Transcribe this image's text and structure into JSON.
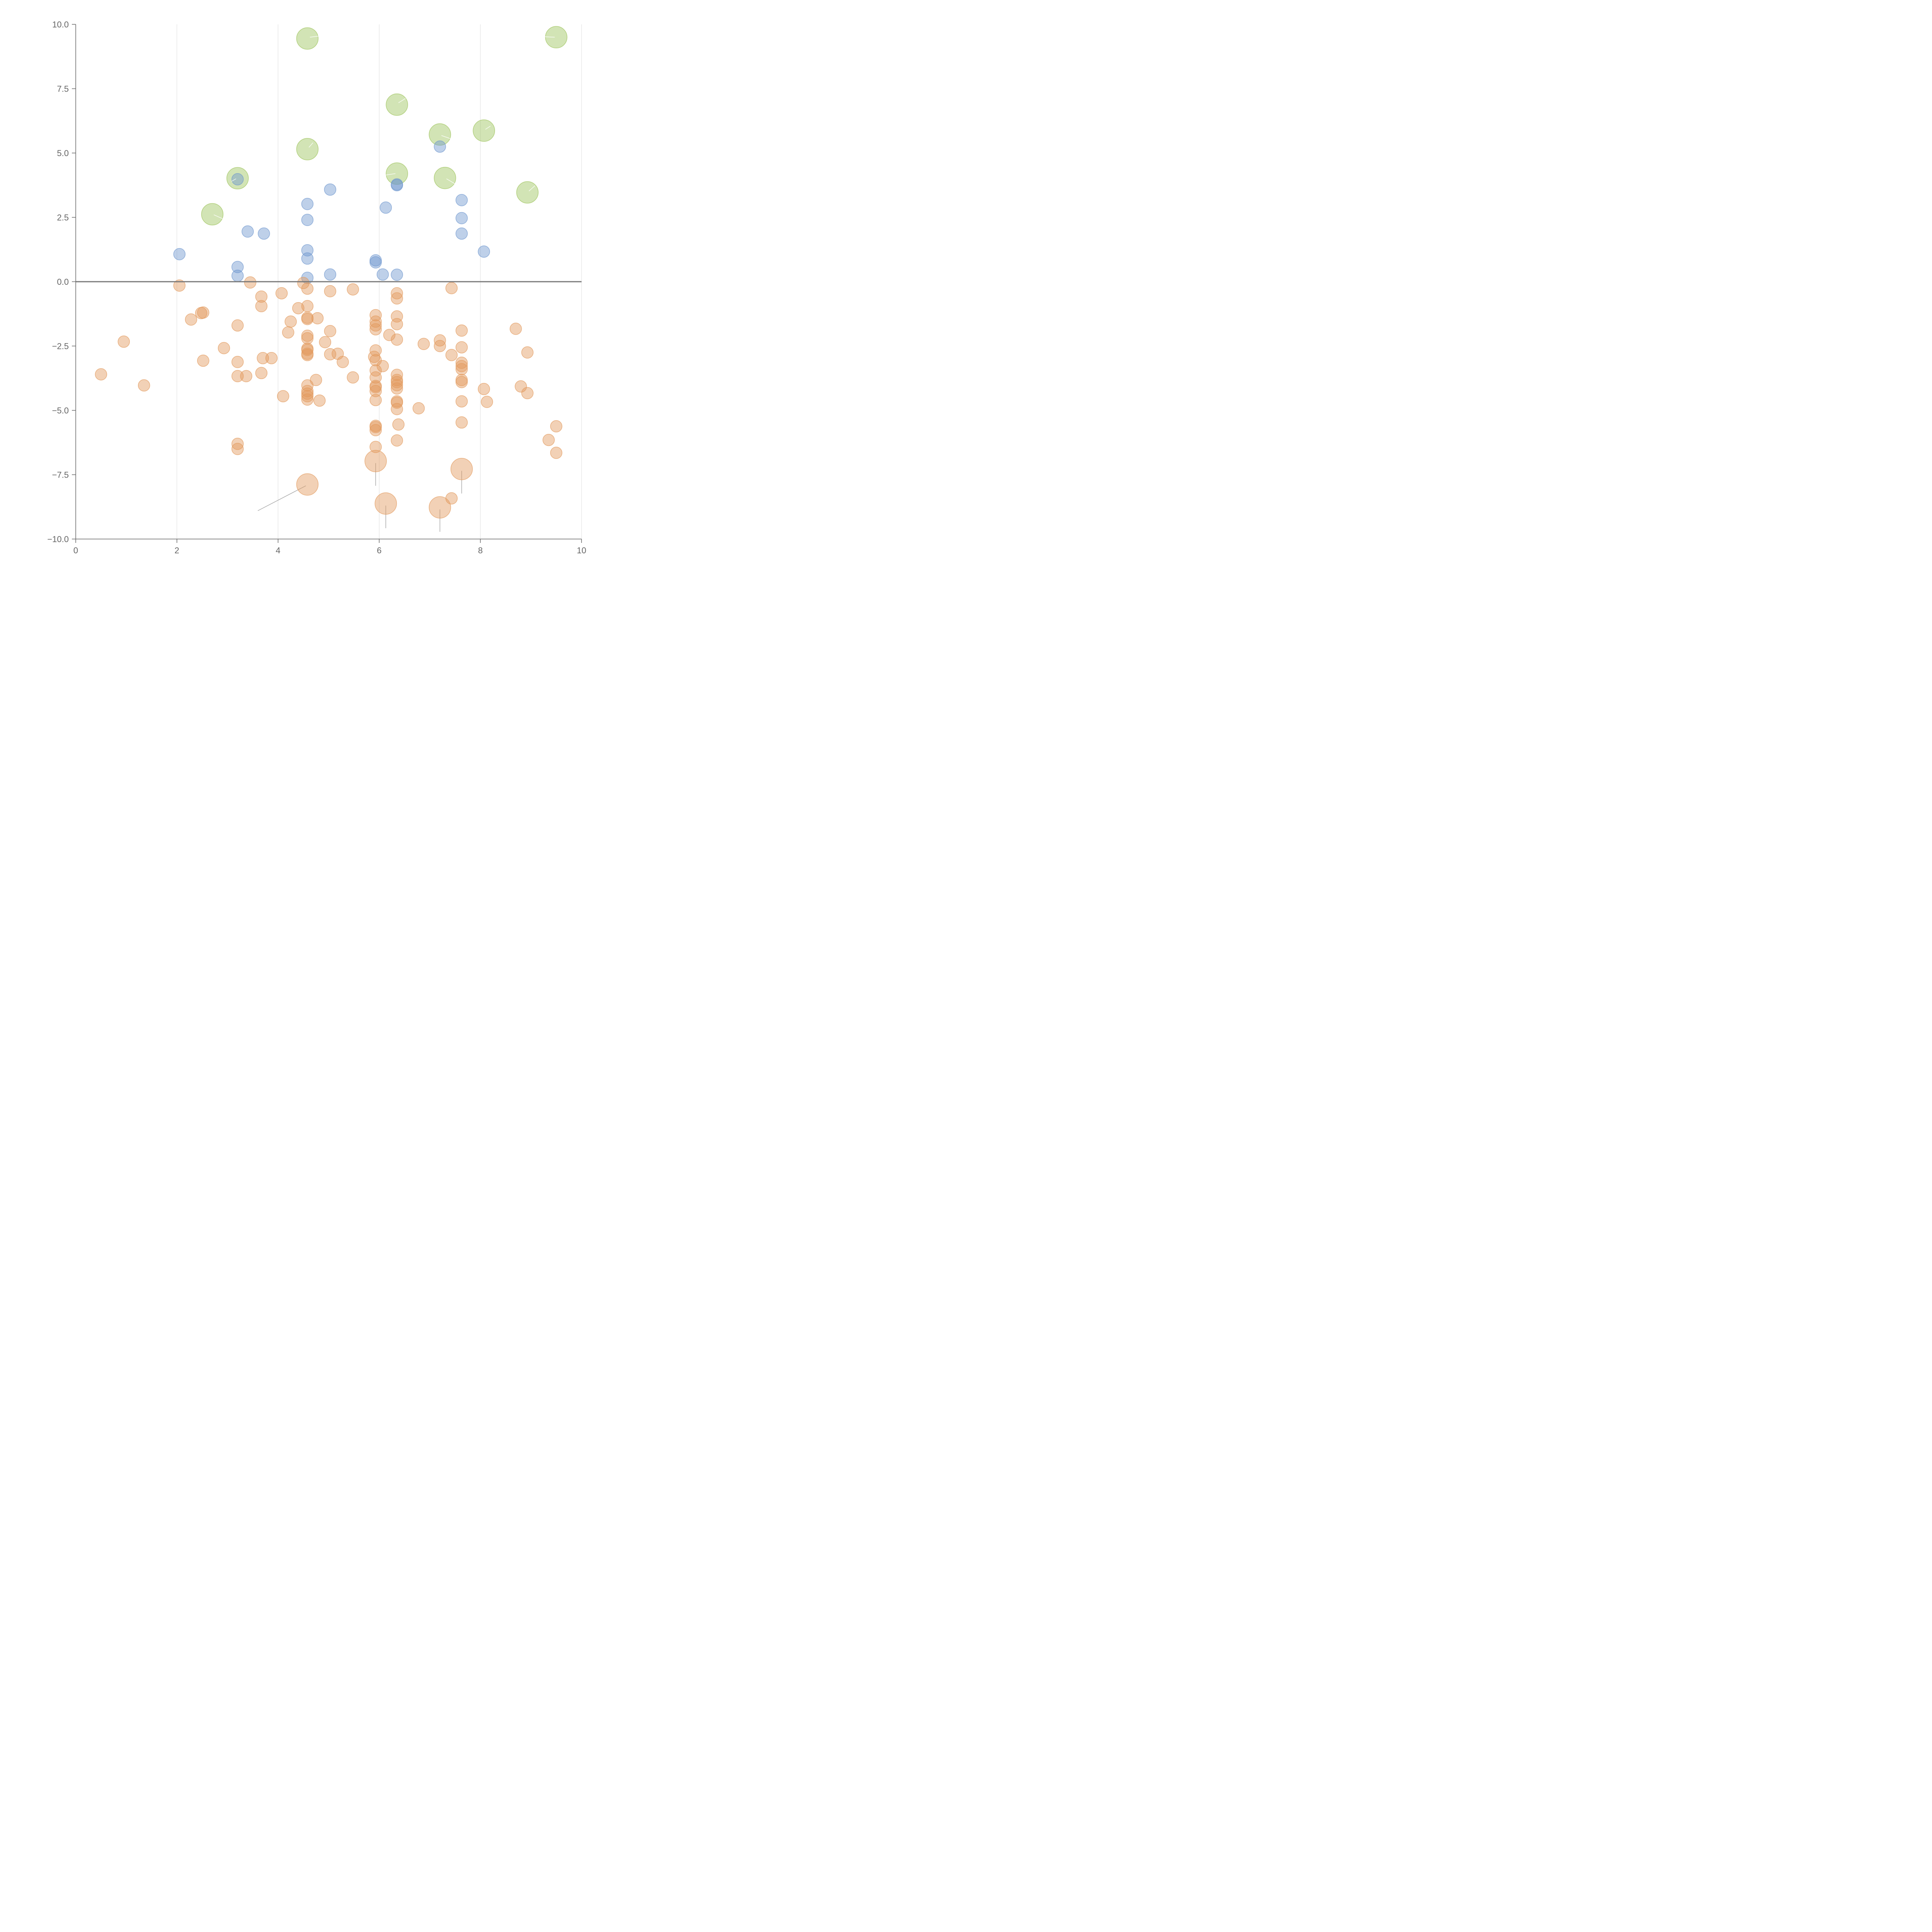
{
  "chart_data": {
    "type": "scatter",
    "title": "",
    "xlabel": "",
    "ylabel": "",
    "xlim": [
      0,
      10
    ],
    "ylim": [
      -10,
      10
    ],
    "x_ticks": [
      0,
      2,
      4,
      6,
      8,
      10
    ],
    "x_tick_labels": [
      "0",
      "2",
      "4",
      "6",
      "8",
      "10"
    ],
    "y_ticks": [
      10,
      7.5,
      5,
      2.5,
      0,
      -2.5,
      -5,
      -7.5,
      -10
    ],
    "y_tick_labels": [
      "10.0",
      "7.5",
      "5.0",
      "2.5",
      "0.0",
      "−2.5",
      "−5.0",
      "−7.5",
      "−10.0"
    ],
    "x_grid": true,
    "y_grid": false,
    "reference_line_y": 0,
    "series_colors": {
      "large_positive": "#9cc35a",
      "small_positive": "#6f97cf",
      "negative": "#e39a5d"
    },
    "series": [
      {
        "name": "large_positive",
        "radius": "large",
        "points": [
          [
            4.58,
            9.45
          ],
          [
            9.5,
            9.5
          ],
          [
            6.35,
            6.88
          ],
          [
            7.2,
            5.72
          ],
          [
            8.07,
            5.87
          ],
          [
            4.58,
            5.15
          ],
          [
            3.2,
            4.02
          ],
          [
            6.35,
            4.2
          ],
          [
            7.3,
            4.03
          ],
          [
            8.93,
            3.47
          ],
          [
            2.7,
            2.62
          ]
        ]
      },
      {
        "name": "small_positive",
        "radius": "small",
        "points": [
          [
            7.2,
            5.25
          ],
          [
            3.2,
            3.98
          ],
          [
            6.35,
            3.78
          ],
          [
            6.35,
            3.75
          ],
          [
            5.03,
            3.58
          ],
          [
            4.58,
            3.02
          ],
          [
            7.63,
            3.17
          ],
          [
            6.13,
            2.88
          ],
          [
            4.58,
            2.4
          ],
          [
            7.63,
            2.47
          ],
          [
            3.4,
            1.95
          ],
          [
            3.72,
            1.87
          ],
          [
            7.63,
            1.87
          ],
          [
            4.58,
            1.22
          ],
          [
            8.07,
            1.17
          ],
          [
            2.05,
            1.07
          ],
          [
            4.58,
            0.9
          ],
          [
            5.93,
            0.83
          ],
          [
            5.93,
            0.75
          ],
          [
            3.2,
            0.57
          ],
          [
            3.2,
            0.23
          ],
          [
            6.07,
            0.28
          ],
          [
            5.03,
            0.28
          ],
          [
            6.35,
            0.27
          ],
          [
            4.58,
            0.15
          ]
        ]
      },
      {
        "name": "negative",
        "radius": "small",
        "points": [
          [
            2.05,
            -0.15
          ],
          [
            3.45,
            -0.03
          ],
          [
            4.5,
            -0.05
          ],
          [
            4.58,
            -0.27
          ],
          [
            5.03,
            -0.37
          ],
          [
            5.48,
            -0.3
          ],
          [
            7.43,
            -0.25
          ],
          [
            3.67,
            -0.58
          ],
          [
            4.07,
            -0.45
          ],
          [
            6.35,
            -0.45
          ],
          [
            6.35,
            -0.65
          ],
          [
            3.67,
            -0.95
          ],
          [
            4.4,
            -1.03
          ],
          [
            4.58,
            -0.95
          ],
          [
            2.48,
            -1.22
          ],
          [
            2.52,
            -1.2
          ],
          [
            4.58,
            -1.4
          ],
          [
            4.58,
            -1.45
          ],
          [
            4.78,
            -1.42
          ],
          [
            5.93,
            -1.3
          ],
          [
            6.35,
            -1.35
          ],
          [
            2.28,
            -1.47
          ],
          [
            4.25,
            -1.55
          ],
          [
            5.93,
            -1.55
          ],
          [
            5.93,
            -1.7
          ],
          [
            6.35,
            -1.65
          ],
          [
            3.2,
            -1.7
          ],
          [
            5.93,
            -1.85
          ],
          [
            4.2,
            -1.97
          ],
          [
            5.03,
            -1.92
          ],
          [
            6.2,
            -2.07
          ],
          [
            7.63,
            -1.9
          ],
          [
            8.7,
            -1.83
          ],
          [
            4.58,
            -2.1
          ],
          [
            4.58,
            -2.2
          ],
          [
            6.35,
            -2.25
          ],
          [
            7.2,
            -2.28
          ],
          [
            0.95,
            -2.33
          ],
          [
            4.93,
            -2.35
          ],
          [
            6.88,
            -2.42
          ],
          [
            7.2,
            -2.5
          ],
          [
            2.93,
            -2.58
          ],
          [
            4.58,
            -2.6
          ],
          [
            4.58,
            -2.65
          ],
          [
            5.93,
            -2.67
          ],
          [
            7.63,
            -2.55
          ],
          [
            5.18,
            -2.8
          ],
          [
            5.03,
            -2.82
          ],
          [
            4.58,
            -2.8
          ],
          [
            4.58,
            -2.85
          ],
          [
            7.43,
            -2.85
          ],
          [
            8.93,
            -2.75
          ],
          [
            5.9,
            -2.92
          ],
          [
            3.7,
            -2.97
          ],
          [
            3.87,
            -2.97
          ],
          [
            5.93,
            -3.05
          ],
          [
            2.52,
            -3.07
          ],
          [
            3.2,
            -3.12
          ],
          [
            5.28,
            -3.12
          ],
          [
            7.63,
            -3.15
          ],
          [
            6.07,
            -3.28
          ],
          [
            7.63,
            -3.28
          ],
          [
            7.63,
            -3.4
          ],
          [
            5.93,
            -3.45
          ],
          [
            3.67,
            -3.55
          ],
          [
            0.5,
            -3.6
          ],
          [
            6.35,
            -3.62
          ],
          [
            3.2,
            -3.67
          ],
          [
            3.37,
            -3.67
          ],
          [
            5.48,
            -3.72
          ],
          [
            5.93,
            -3.72
          ],
          [
            4.75,
            -3.82
          ],
          [
            6.35,
            -3.82
          ],
          [
            7.63,
            -3.82
          ],
          [
            6.35,
            -3.9
          ],
          [
            7.63,
            -3.9
          ],
          [
            6.35,
            -4.02
          ],
          [
            1.35,
            -4.03
          ],
          [
            4.58,
            -4.03
          ],
          [
            5.93,
            -4.05
          ],
          [
            5.93,
            -4.1
          ],
          [
            8.8,
            -4.07
          ],
          [
            6.35,
            -4.15
          ],
          [
            8.07,
            -4.17
          ],
          [
            4.58,
            -4.25
          ],
          [
            5.93,
            -4.25
          ],
          [
            4.58,
            -4.35
          ],
          [
            8.93,
            -4.33
          ],
          [
            4.1,
            -4.45
          ],
          [
            4.58,
            -4.45
          ],
          [
            4.58,
            -4.58
          ],
          [
            4.82,
            -4.62
          ],
          [
            5.93,
            -4.6
          ],
          [
            6.35,
            -4.65
          ],
          [
            6.35,
            -4.7
          ],
          [
            7.63,
            -4.65
          ],
          [
            8.13,
            -4.67
          ],
          [
            6.35,
            -4.95
          ],
          [
            6.78,
            -4.92
          ],
          [
            7.63,
            -5.47
          ],
          [
            6.38,
            -5.55
          ],
          [
            5.93,
            -5.6
          ],
          [
            5.93,
            -5.65
          ],
          [
            9.5,
            -5.62
          ],
          [
            5.93,
            -5.77
          ],
          [
            6.35,
            -6.17
          ],
          [
            9.35,
            -6.15
          ],
          [
            3.2,
            -6.3
          ],
          [
            5.93,
            -6.42
          ],
          [
            3.2,
            -6.5
          ],
          [
            9.5,
            -6.65
          ],
          [
            7.43,
            -8.42
          ]
        ]
      },
      {
        "name": "negative_large",
        "radius": "large",
        "points": [
          [
            5.93,
            -6.97
          ],
          [
            7.63,
            -7.28
          ],
          [
            4.58,
            -7.88
          ],
          [
            6.13,
            -8.62
          ],
          [
            7.2,
            -8.77
          ]
        ]
      }
    ],
    "leader_lines": [
      {
        "from": [
          4.55,
          -7.93
        ],
        "to": [
          3.6,
          -8.9
        ]
      },
      {
        "from": [
          5.93,
          -7.05
        ],
        "to": [
          5.93,
          -7.93
        ]
      },
      {
        "from": [
          7.63,
          -7.35
        ],
        "to": [
          7.63,
          -8.23
        ]
      },
      {
        "from": [
          6.13,
          -8.7
        ],
        "to": [
          6.13,
          -9.58
        ]
      },
      {
        "from": [
          7.2,
          -8.85
        ],
        "to": [
          7.2,
          -9.72
        ]
      },
      {
        "from": [
          4.63,
          9.5
        ],
        "to": [
          4.95,
          9.58
        ]
      },
      {
        "from": [
          9.47,
          9.5
        ],
        "to": [
          9.25,
          9.52
        ]
      },
      {
        "from": [
          6.38,
          6.95
        ],
        "to": [
          6.52,
          7.12
        ]
      },
      {
        "from": [
          7.23,
          5.68
        ],
        "to": [
          7.42,
          5.55
        ]
      },
      {
        "from": [
          8.1,
          5.92
        ],
        "to": [
          8.2,
          6.05
        ]
      },
      {
        "from": [
          4.61,
          5.22
        ],
        "to": [
          4.69,
          5.4
        ]
      },
      {
        "from": [
          3.17,
          4.0
        ],
        "to": [
          3.08,
          3.9
        ]
      },
      {
        "from": [
          6.32,
          4.2
        ],
        "to": [
          6.08,
          4.13
        ]
      },
      {
        "from": [
          7.33,
          4.0
        ],
        "to": [
          7.5,
          3.8
        ]
      },
      {
        "from": [
          8.96,
          3.52
        ],
        "to": [
          9.08,
          3.73
        ]
      },
      {
        "from": [
          2.73,
          2.6
        ],
        "to": [
          2.9,
          2.45
        ]
      }
    ]
  }
}
